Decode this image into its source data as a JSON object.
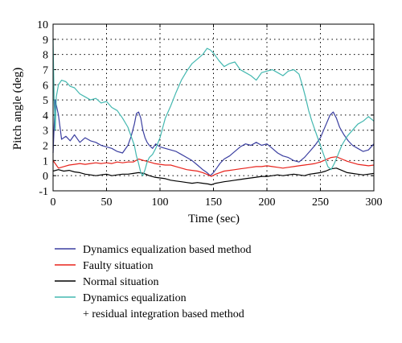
{
  "chart_data": {
    "type": "line",
    "title": "",
    "xlabel": "Time (sec)",
    "ylabel": "Pitch angle (deg)",
    "xlim": [
      0,
      300
    ],
    "ylim": [
      -1,
      10
    ],
    "xticks": [
      0,
      50,
      100,
      150,
      200,
      250,
      300
    ],
    "yticks": [
      -1,
      0,
      1,
      2,
      3,
      4,
      5,
      6,
      7,
      8,
      9,
      10
    ],
    "grid": true,
    "legend_position": "below",
    "series": [
      {
        "name": "Dynamics equalization based method",
        "color": "#3b3fa0",
        "x": [
          0,
          2,
          5,
          8,
          12,
          16,
          20,
          25,
          30,
          35,
          40,
          45,
          50,
          55,
          60,
          65,
          70,
          73,
          76,
          78,
          80,
          82,
          84,
          86,
          88,
          90,
          93,
          96,
          100,
          105,
          110,
          115,
          120,
          125,
          130,
          135,
          140,
          144,
          147,
          150,
          153,
          156,
          160,
          165,
          170,
          175,
          180,
          185,
          190,
          195,
          200,
          205,
          210,
          215,
          220,
          225,
          230,
          235,
          240,
          245,
          250,
          253,
          256,
          259,
          262,
          265,
          268,
          272,
          276,
          280,
          285,
          290,
          295,
          300
        ],
        "y": [
          1.5,
          5.0,
          4.0,
          2.4,
          2.6,
          2.3,
          2.7,
          2.2,
          2.5,
          2.3,
          2.2,
          2.0,
          1.9,
          1.8,
          1.6,
          1.5,
          2.0,
          2.6,
          3.4,
          4.1,
          4.2,
          3.8,
          3.0,
          2.5,
          2.2,
          2.0,
          1.8,
          2.1,
          1.9,
          1.8,
          1.7,
          1.6,
          1.4,
          1.2,
          1.0,
          0.7,
          0.4,
          0.2,
          0.0,
          0.2,
          0.5,
          0.8,
          1.1,
          1.3,
          1.6,
          1.9,
          2.1,
          2.0,
          2.2,
          2.0,
          2.1,
          1.8,
          1.5,
          1.3,
          1.2,
          1.0,
          0.9,
          1.2,
          1.6,
          2.0,
          2.5,
          3.0,
          3.5,
          4.0,
          4.2,
          3.8,
          3.2,
          2.7,
          2.3,
          2.0,
          1.8,
          1.6,
          1.7,
          2.1
        ]
      },
      {
        "name": "Faulty situation",
        "color": "#e8231c",
        "x": [
          0,
          5,
          10,
          15,
          20,
          25,
          30,
          35,
          40,
          45,
          50,
          55,
          60,
          65,
          70,
          75,
          80,
          85,
          90,
          95,
          100,
          105,
          110,
          115,
          120,
          125,
          130,
          135,
          140,
          145,
          148,
          152,
          156,
          160,
          165,
          170,
          175,
          180,
          185,
          190,
          195,
          200,
          205,
          210,
          215,
          220,
          225,
          230,
          235,
          240,
          245,
          250,
          255,
          260,
          265,
          270,
          275,
          280,
          285,
          290,
          295,
          300
        ],
        "y": [
          1.0,
          0.5,
          0.6,
          0.7,
          0.75,
          0.8,
          0.75,
          0.8,
          0.85,
          0.8,
          0.85,
          0.8,
          0.9,
          0.85,
          0.9,
          0.9,
          1.1,
          1.0,
          0.9,
          0.8,
          0.75,
          0.7,
          0.7,
          0.6,
          0.5,
          0.4,
          0.35,
          0.3,
          0.2,
          0.05,
          -0.05,
          0.1,
          0.2,
          0.3,
          0.35,
          0.4,
          0.45,
          0.5,
          0.55,
          0.6,
          0.6,
          0.65,
          0.6,
          0.55,
          0.5,
          0.55,
          0.6,
          0.65,
          0.7,
          0.75,
          0.8,
          0.9,
          1.05,
          1.2,
          1.25,
          1.1,
          0.95,
          0.85,
          0.75,
          0.7,
          0.65,
          0.7
        ]
      },
      {
        "name": "Normal situation",
        "color": "#000000",
        "x": [
          0,
          5,
          10,
          15,
          20,
          25,
          30,
          35,
          40,
          45,
          50,
          55,
          60,
          65,
          70,
          75,
          80,
          85,
          90,
          95,
          100,
          105,
          110,
          115,
          120,
          125,
          130,
          135,
          140,
          145,
          148,
          152,
          156,
          160,
          165,
          170,
          175,
          180,
          185,
          190,
          195,
          200,
          205,
          210,
          215,
          220,
          225,
          230,
          235,
          240,
          245,
          250,
          255,
          260,
          265,
          270,
          275,
          280,
          285,
          290,
          295,
          300
        ],
        "y": [
          0.3,
          0.4,
          0.3,
          0.35,
          0.25,
          0.2,
          0.1,
          0.05,
          0.0,
          0.05,
          0.1,
          0.0,
          0.05,
          0.1,
          0.1,
          0.15,
          0.2,
          0.15,
          0.0,
          -0.1,
          -0.15,
          -0.2,
          -0.3,
          -0.35,
          -0.4,
          -0.45,
          -0.5,
          -0.45,
          -0.5,
          -0.55,
          -0.6,
          -0.5,
          -0.45,
          -0.4,
          -0.35,
          -0.3,
          -0.25,
          -0.2,
          -0.15,
          -0.1,
          -0.05,
          -0.05,
          0.0,
          0.05,
          0.0,
          0.05,
          0.1,
          0.05,
          0.0,
          0.1,
          0.15,
          0.2,
          0.3,
          0.45,
          0.5,
          0.35,
          0.2,
          0.15,
          0.1,
          0.05,
          0.1,
          0.15
        ]
      },
      {
        "name": "Dynamics equalization\n+ residual integration based method",
        "color": "#44b8b0",
        "x": [
          0,
          1,
          2,
          3,
          5,
          8,
          12,
          16,
          20,
          25,
          30,
          35,
          40,
          45,
          50,
          55,
          60,
          65,
          70,
          73,
          76,
          78,
          80,
          82,
          84,
          86,
          88,
          90,
          93,
          96,
          100,
          105,
          110,
          115,
          120,
          125,
          130,
          135,
          140,
          144,
          147,
          150,
          155,
          160,
          165,
          170,
          175,
          180,
          185,
          190,
          195,
          200,
          205,
          210,
          215,
          220,
          225,
          230,
          233,
          236,
          239,
          242,
          245,
          248,
          251,
          254,
          257,
          260,
          263,
          266,
          270,
          275,
          280,
          285,
          290,
          295,
          300
        ],
        "y": [
          9.0,
          5.0,
          3.0,
          5.2,
          6.0,
          6.3,
          6.2,
          5.9,
          5.8,
          5.4,
          5.2,
          5.0,
          5.1,
          4.8,
          4.9,
          4.5,
          4.3,
          3.8,
          3.2,
          2.6,
          2.0,
          1.3,
          0.8,
          0.2,
          0.0,
          0.4,
          0.9,
          1.2,
          1.4,
          1.8,
          2.5,
          3.8,
          4.6,
          5.5,
          6.3,
          6.9,
          7.4,
          7.7,
          8.0,
          8.4,
          8.3,
          8.1,
          7.6,
          7.2,
          7.4,
          7.5,
          7.0,
          6.8,
          6.6,
          6.3,
          6.8,
          6.9,
          7.0,
          6.8,
          6.6,
          6.9,
          7.0,
          6.7,
          6.0,
          5.2,
          4.3,
          3.6,
          3.0,
          2.4,
          1.8,
          1.2,
          0.6,
          0.4,
          0.8,
          1.3,
          2.0,
          2.6,
          3.0,
          3.4,
          3.6,
          3.9,
          3.6
        ]
      }
    ]
  }
}
